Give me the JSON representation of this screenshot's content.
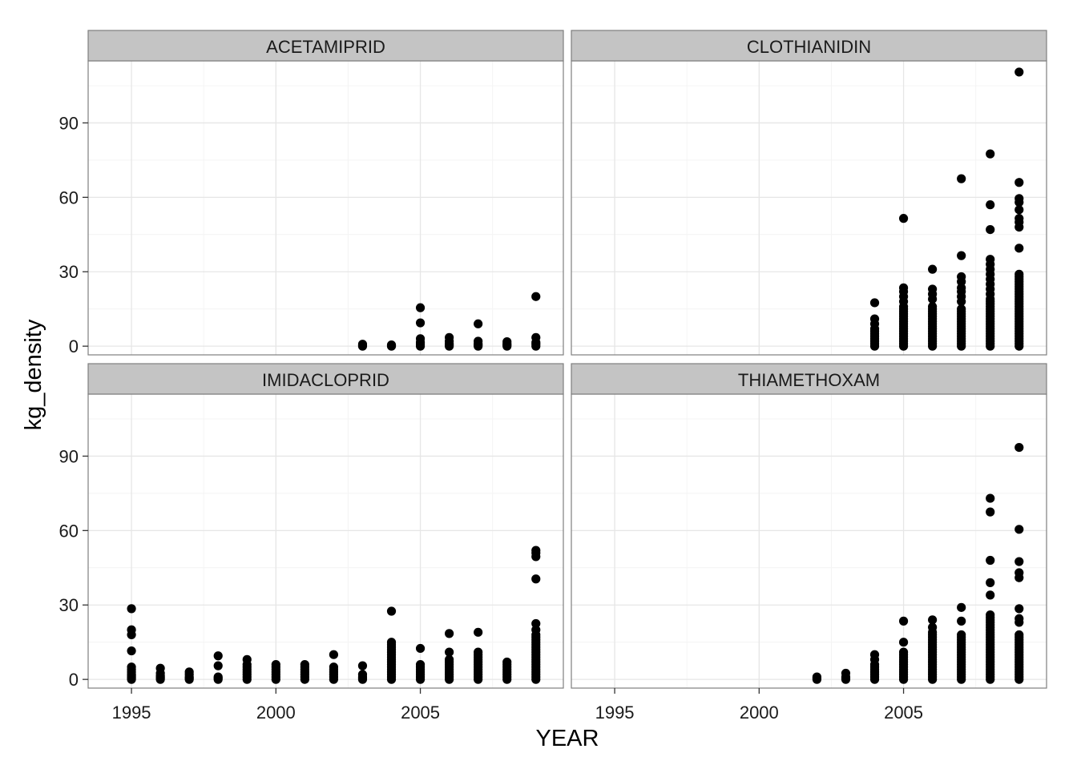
{
  "chart_data": {
    "type": "scatter",
    "xlabel": "YEAR",
    "ylabel": "kg_density",
    "xlim": [
      1993.5,
      2009.95
    ],
    "ylim": [
      -3.5,
      115
    ],
    "x_ticks": [
      1995,
      2000,
      2005
    ],
    "y_ticks": [
      0,
      30,
      60,
      90
    ],
    "grid": true,
    "facets": [
      {
        "name": "ACETAMIPRID",
        "points": [
          {
            "x": 2003,
            "y": [
              0,
              0.3,
              0.8
            ]
          },
          {
            "x": 2004,
            "y": [
              0,
              0.2,
              0.5
            ]
          },
          {
            "x": 2005,
            "y": [
              0,
              0.8,
              1.6,
              3,
              9.4,
              15.5
            ]
          },
          {
            "x": 2006,
            "y": [
              0,
              0.5,
              1,
              2,
              3.5
            ]
          },
          {
            "x": 2007,
            "y": [
              0,
              0.5,
              1,
              2,
              9
            ]
          },
          {
            "x": 2008,
            "y": [
              0,
              0.5,
              1,
              1.8
            ]
          },
          {
            "x": 2009,
            "y": [
              0,
              0.8,
              1.5,
              3.5,
              20
            ]
          }
        ]
      },
      {
        "name": "CLOTHIANIDIN",
        "points": [
          {
            "x": 2004,
            "y": [
              0,
              1,
              2,
              3,
              4,
              5,
              6,
              7,
              9,
              11,
              17.5
            ]
          },
          {
            "x": 2005,
            "y": [
              0,
              1,
              2,
              3,
              4,
              5,
              6,
              7,
              8,
              9,
              10,
              11,
              12,
              13,
              14,
              15,
              16,
              18,
              20,
              22,
              23.5,
              51.5
            ]
          },
          {
            "x": 2006,
            "y": [
              0,
              1,
              2,
              3,
              4,
              5,
              6,
              7,
              8,
              9,
              10,
              11,
              12,
              13,
              14,
              15,
              16,
              19,
              21,
              23,
              31
            ]
          },
          {
            "x": 2007,
            "y": [
              0,
              1,
              2,
              3,
              4,
              5,
              6,
              7,
              8,
              9,
              10,
              11,
              12,
              13,
              14,
              15,
              18,
              20,
              22,
              23.5,
              26,
              28,
              36.5,
              67.5
            ]
          },
          {
            "x": 2008,
            "y": [
              0,
              1,
              2,
              3,
              4,
              5,
              6,
              7,
              8,
              9,
              10,
              11,
              12,
              13,
              14,
              15,
              16,
              17,
              18,
              19,
              21,
              23,
              25,
              27,
              29,
              31,
              33,
              35,
              47,
              57,
              77.5
            ]
          },
          {
            "x": 2009,
            "y": [
              0,
              1,
              2,
              3,
              4,
              5,
              6,
              7,
              8,
              9,
              10,
              11,
              12,
              13,
              14,
              15,
              16,
              17,
              18,
              19,
              20,
              21,
              22,
              23,
              24,
              25,
              26,
              27,
              28,
              29,
              39.5,
              48,
              50,
              51.5,
              55,
              58,
              59.5,
              66,
              110.5
            ]
          }
        ]
      },
      {
        "name": "IMIDACLOPRID",
        "points": [
          {
            "x": 1995,
            "y": [
              0,
              0.5,
              1,
              1.5,
              2,
              3,
              4,
              5,
              11.5,
              18,
              20,
              28.5
            ]
          },
          {
            "x": 1996,
            "y": [
              0,
              0.5,
              1,
              1.5,
              2.5,
              4.5
            ]
          },
          {
            "x": 1997,
            "y": [
              0,
              0.5,
              1,
              2,
              3
            ]
          },
          {
            "x": 1998,
            "y": [
              0,
              0.5,
              1,
              5.5,
              9.5
            ]
          },
          {
            "x": 1999,
            "y": [
              0,
              1,
              2,
              3,
              4,
              5,
              6,
              8
            ]
          },
          {
            "x": 2000,
            "y": [
              0,
              1,
              2,
              3,
              4,
              5,
              6
            ]
          },
          {
            "x": 2001,
            "y": [
              0,
              1,
              2,
              3,
              4,
              5,
              6
            ]
          },
          {
            "x": 2002,
            "y": [
              0,
              1,
              2,
              3,
              4,
              5,
              10
            ]
          },
          {
            "x": 2003,
            "y": [
              0,
              0.5,
              1,
              2,
              5.5
            ]
          },
          {
            "x": 2004,
            "y": [
              0,
              1,
              2,
              3,
              4,
              5,
              6,
              7,
              8,
              9,
              10,
              11,
              12,
              13,
              14,
              15,
              27.5
            ]
          },
          {
            "x": 2005,
            "y": [
              0,
              1,
              2,
              3,
              4,
              5,
              6,
              12.5
            ]
          },
          {
            "x": 2006,
            "y": [
              0,
              1,
              2,
              3,
              4,
              5,
              6,
              7,
              8,
              11,
              18.5
            ]
          },
          {
            "x": 2007,
            "y": [
              0,
              1,
              2,
              3,
              4,
              5,
              6,
              7,
              8,
              9,
              10,
              11,
              19
            ]
          },
          {
            "x": 2008,
            "y": [
              0,
              1,
              2,
              3,
              4,
              5,
              6,
              7
            ]
          },
          {
            "x": 2009,
            "y": [
              0,
              1,
              2,
              3,
              4,
              5,
              6,
              7,
              8,
              9,
              10,
              11,
              12,
              13,
              14,
              15,
              16,
              17,
              18,
              20,
              22.5,
              40.5,
              49.5,
              51,
              52
            ]
          }
        ]
      },
      {
        "name": "THIAMETHOXAM",
        "points": [
          {
            "x": 2002,
            "y": [
              0,
              0.5,
              1
            ]
          },
          {
            "x": 2003,
            "y": [
              0,
              0.5,
              1,
              2.5
            ]
          },
          {
            "x": 2004,
            "y": [
              0,
              1,
              2,
              3,
              4,
              5,
              6,
              8,
              10
            ]
          },
          {
            "x": 2005,
            "y": [
              0,
              1,
              2,
              3,
              4,
              5,
              6,
              7,
              8,
              9,
              10,
              11,
              15,
              23.5
            ]
          },
          {
            "x": 2006,
            "y": [
              0,
              1,
              2,
              3,
              4,
              5,
              6,
              7,
              8,
              9,
              10,
              11,
              12,
              13,
              14,
              15,
              16,
              17,
              18,
              19,
              21,
              24
            ]
          },
          {
            "x": 2007,
            "y": [
              0,
              1,
              2,
              3,
              4,
              5,
              6,
              7,
              8,
              9,
              10,
              11,
              12,
              13,
              14,
              15,
              16,
              17,
              18,
              23.5,
              29
            ]
          },
          {
            "x": 2008,
            "y": [
              0,
              1,
              2,
              3,
              4,
              5,
              6,
              7,
              8,
              9,
              10,
              11,
              12,
              13,
              14,
              15,
              16,
              17,
              18,
              19,
              20,
              21,
              22,
              23,
              24,
              25,
              26,
              34,
              39,
              48,
              67.5,
              73
            ]
          },
          {
            "x": 2009,
            "y": [
              0,
              1,
              2,
              3,
              4,
              5,
              6,
              7,
              8,
              9,
              10,
              11,
              12,
              13,
              14,
              15,
              16,
              17,
              18,
              23,
              24.5,
              28.5,
              41,
              43,
              47.5,
              60.5,
              93.5
            ]
          }
        ]
      }
    ]
  }
}
